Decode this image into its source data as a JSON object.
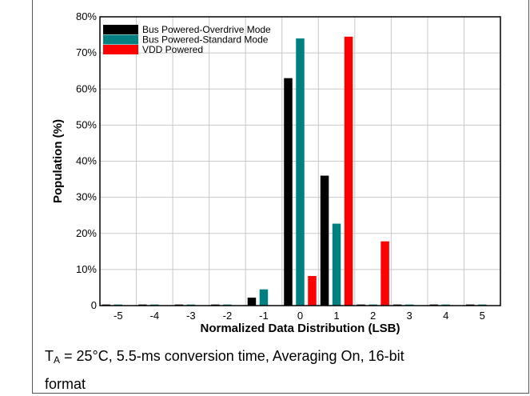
{
  "chart_data": {
    "type": "bar",
    "title": "",
    "xlabel": "Normalized Data Distribution (LSB)",
    "ylabel": "Population (%)",
    "categories": [
      "-5",
      "-4",
      "-3",
      "-2",
      "-1",
      "0",
      "1",
      "2",
      "3",
      "4",
      "5"
    ],
    "ylim": [
      0,
      80
    ],
    "yticks": [
      "0",
      "10%",
      "20%",
      "30%",
      "40%",
      "50%",
      "60%",
      "70%",
      "80%"
    ],
    "grid": true,
    "legend_position": "top-left",
    "series": [
      {
        "name": "Bus Powered-Overdrive Mode",
        "color": "#000000",
        "values": [
          0.3,
          0.3,
          0.3,
          0.3,
          2.2,
          63,
          36,
          0.3,
          0.3,
          0.3,
          0.3
        ]
      },
      {
        "name": "Bus Powered-Standard Mode",
        "color": "#008080",
        "values": [
          0.3,
          0.3,
          0.3,
          0.3,
          4.5,
          74,
          22.7,
          0.3,
          0.3,
          0.3,
          0.3
        ]
      },
      {
        "name": "VDD Powered",
        "color": "#ff0000",
        "values": [
          0,
          0,
          0,
          0,
          0,
          8.2,
          74.5,
          17.8,
          0,
          0,
          0
        ]
      }
    ]
  },
  "caption": {
    "t_symbol": "T",
    "t_subscript": "A",
    "line1_rest": " = 25°C, 5.5-ms conversion time, Averaging On, 16-bit",
    "line2": "format"
  }
}
